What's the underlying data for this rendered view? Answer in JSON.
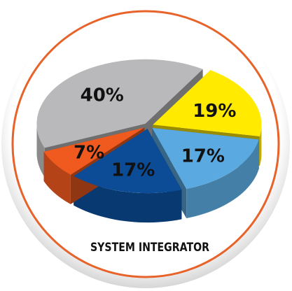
{
  "chart_data": {
    "type": "pie3d",
    "title": "SYSTEM INTEGRATOR",
    "categories": [
      null,
      null,
      null,
      null,
      null
    ],
    "values": [
      40,
      19,
      17,
      17,
      7
    ],
    "value_labels": [
      "40%",
      "19%",
      "17%",
      "17%",
      "7%"
    ],
    "colors": [
      "#b9b9bb",
      "#ffea00",
      "#5aa9e0",
      "#0c4c96",
      "#f05a1e"
    ]
  }
}
